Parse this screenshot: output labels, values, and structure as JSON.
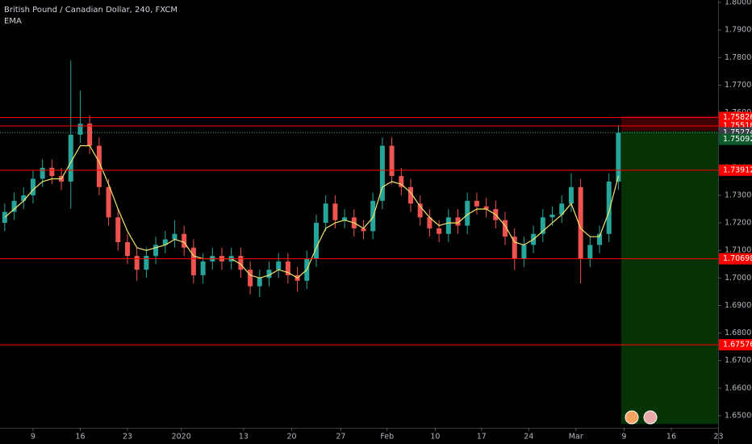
{
  "chart_data": {
    "type": "candlestick",
    "title": "British Pound / Canadian Dollar, 240, FXCM",
    "indicator": "EMA",
    "up_color": "#26a69a",
    "down_color": "#ef5350",
    "ema_color": "#f2e66b",
    "level_color": "#ff0000",
    "x": [
      -3,
      -2,
      -1,
      0,
      1,
      2,
      3,
      4,
      5,
      6,
      7,
      8,
      9,
      10,
      11,
      12,
      13,
      14,
      15,
      16,
      17,
      18,
      19,
      20,
      21,
      22,
      23,
      24,
      25,
      26,
      27,
      28,
      29,
      30,
      31,
      32,
      33,
      34,
      35,
      36,
      37,
      38,
      39,
      40,
      41,
      42,
      43,
      44,
      45,
      46,
      47,
      48,
      49,
      50,
      51,
      52,
      53,
      54,
      55,
      56,
      57,
      58,
      59,
      60,
      61,
      62
    ],
    "open": [
      1.72,
      1.724,
      1.728,
      1.73,
      1.736,
      1.74,
      1.737,
      1.735,
      1.752,
      1.756,
      1.748,
      1.733,
      1.722,
      1.713,
      1.708,
      1.703,
      1.708,
      1.712,
      1.714,
      1.716,
      1.711,
      1.701,
      1.706,
      1.708,
      1.706,
      1.708,
      1.703,
      1.697,
      1.7,
      1.703,
      1.706,
      1.701,
      1.699,
      1.707,
      1.72,
      1.727,
      1.721,
      1.722,
      1.718,
      1.717,
      1.728,
      1.748,
      1.737,
      1.733,
      1.727,
      1.722,
      1.718,
      1.716,
      1.722,
      1.719,
      1.728,
      1.726,
      1.725,
      1.721,
      1.715,
      1.707,
      1.712,
      1.716,
      1.722,
      1.723,
      1.727,
      1.733,
      1.707,
      1.712,
      1.716,
      1.735
    ],
    "high": [
      1.727,
      1.731,
      1.733,
      1.739,
      1.743,
      1.743,
      1.74,
      1.779,
      1.768,
      1.759,
      1.751,
      1.736,
      1.725,
      1.716,
      1.711,
      1.711,
      1.715,
      1.717,
      1.721,
      1.719,
      1.714,
      1.709,
      1.711,
      1.711,
      1.711,
      1.711,
      1.706,
      1.703,
      1.706,
      1.709,
      1.709,
      1.704,
      1.71,
      1.723,
      1.73,
      1.73,
      1.725,
      1.725,
      1.721,
      1.731,
      1.751,
      1.751,
      1.74,
      1.736,
      1.73,
      1.725,
      1.721,
      1.725,
      1.725,
      1.731,
      1.731,
      1.729,
      1.728,
      1.724,
      1.718,
      1.715,
      1.719,
      1.725,
      1.726,
      1.73,
      1.738,
      1.736,
      1.715,
      1.719,
      1.738,
      1.7555
    ],
    "low": [
      1.717,
      1.721,
      1.725,
      1.727,
      1.733,
      1.734,
      1.732,
      1.725,
      1.749,
      1.745,
      1.73,
      1.719,
      1.71,
      1.705,
      1.699,
      1.7,
      1.705,
      1.709,
      1.711,
      1.708,
      1.698,
      1.698,
      1.703,
      1.703,
      1.703,
      1.7,
      1.694,
      1.693,
      1.697,
      1.7,
      1.698,
      1.695,
      1.696,
      1.704,
      1.717,
      1.718,
      1.718,
      1.715,
      1.714,
      1.714,
      1.725,
      1.734,
      1.73,
      1.724,
      1.719,
      1.715,
      1.713,
      1.713,
      1.716,
      1.716,
      1.723,
      1.722,
      1.718,
      1.712,
      1.703,
      1.704,
      1.709,
      1.713,
      1.719,
      1.72,
      1.724,
      1.698,
      1.704,
      1.709,
      1.713,
      1.732
    ],
    "close": [
      1.724,
      1.728,
      1.73,
      1.736,
      1.74,
      1.737,
      1.735,
      1.752,
      1.756,
      1.748,
      1.733,
      1.722,
      1.713,
      1.708,
      1.703,
      1.708,
      1.712,
      1.714,
      1.716,
      1.711,
      1.701,
      1.706,
      1.708,
      1.706,
      1.708,
      1.703,
      1.697,
      1.7,
      1.703,
      1.706,
      1.701,
      1.699,
      1.707,
      1.72,
      1.727,
      1.721,
      1.722,
      1.718,
      1.717,
      1.728,
      1.748,
      1.737,
      1.733,
      1.727,
      1.722,
      1.718,
      1.716,
      1.722,
      1.719,
      1.728,
      1.726,
      1.725,
      1.721,
      1.715,
      1.707,
      1.712,
      1.716,
      1.722,
      1.723,
      1.727,
      1.733,
      1.707,
      1.712,
      1.716,
      1.735,
      1.7527
    ],
    "ema": [
      1.722,
      1.725,
      1.728,
      1.732,
      1.735,
      1.736,
      1.736,
      1.742,
      1.748,
      1.748,
      1.742,
      1.734,
      1.725,
      1.717,
      1.711,
      1.71,
      1.711,
      1.712,
      1.714,
      1.713,
      1.708,
      1.707,
      1.707,
      1.707,
      1.707,
      1.705,
      1.701,
      1.7,
      1.701,
      1.703,
      1.702,
      1.7,
      1.703,
      1.711,
      1.718,
      1.72,
      1.721,
      1.72,
      1.718,
      1.722,
      1.733,
      1.735,
      1.734,
      1.731,
      1.726,
      1.722,
      1.719,
      1.72,
      1.72,
      1.723,
      1.725,
      1.725,
      1.723,
      1.719,
      1.713,
      1.712,
      1.714,
      1.717,
      1.72,
      1.723,
      1.727,
      1.718,
      1.715,
      1.715,
      1.724,
      1.737
    ],
    "levels": [
      1.75826,
      1.75518,
      1.73912,
      1.70698,
      1.67576
    ],
    "last_price": 1.75274,
    "price_tag": 1.75092,
    "position": {
      "x_start": 62.3,
      "stop": 1.7588,
      "entry": 1.7532,
      "target": 1.647
    },
    "xlim": [
      -3.5,
      72.56
    ],
    "xticks": [
      {
        "value": 0,
        "label": "9"
      },
      {
        "value": 5,
        "label": "16"
      },
      {
        "value": 10,
        "label": "23"
      },
      {
        "value": 15.7,
        "label": "2020"
      },
      {
        "value": 22.3,
        "label": "13"
      },
      {
        "value": 27.4,
        "label": "20"
      },
      {
        "value": 32.6,
        "label": "27"
      },
      {
        "value": 37.5,
        "label": "Feb"
      },
      {
        "value": 42.6,
        "label": "10"
      },
      {
        "value": 47.5,
        "label": "17"
      },
      {
        "value": 52.5,
        "label": "24"
      },
      {
        "value": 57.5,
        "label": "Mar"
      },
      {
        "value": 62.6,
        "label": "9"
      },
      {
        "value": 67.6,
        "label": "16"
      },
      {
        "value": 72.6,
        "label": "23"
      }
    ],
    "ylim": [
      1.6456,
      1.8009
    ],
    "yticks": [
      {
        "value": 1.65,
        "label": "1.65000"
      },
      {
        "value": 1.66,
        "label": "1.66000"
      },
      {
        "value": 1.67,
        "label": "1.67000"
      },
      {
        "value": 1.68,
        "label": "1.68000"
      },
      {
        "value": 1.69,
        "label": "1.69000"
      },
      {
        "value": 1.7,
        "label": "1.70000"
      },
      {
        "value": 1.71,
        "label": "1.71000"
      },
      {
        "value": 1.72,
        "label": "1.72000"
      },
      {
        "value": 1.73,
        "label": "1.73000"
      },
      {
        "value": 1.74,
        "label": "1.74000"
      },
      {
        "value": 1.75,
        "label": "1.75000"
      },
      {
        "value": 1.76,
        "label": "1.76000"
      },
      {
        "value": 1.77,
        "label": "1.77000"
      },
      {
        "value": 1.78,
        "label": "1.78000"
      },
      {
        "value": 1.79,
        "label": "1.79000"
      },
      {
        "value": 1.8,
        "label": "1.80000"
      }
    ]
  }
}
